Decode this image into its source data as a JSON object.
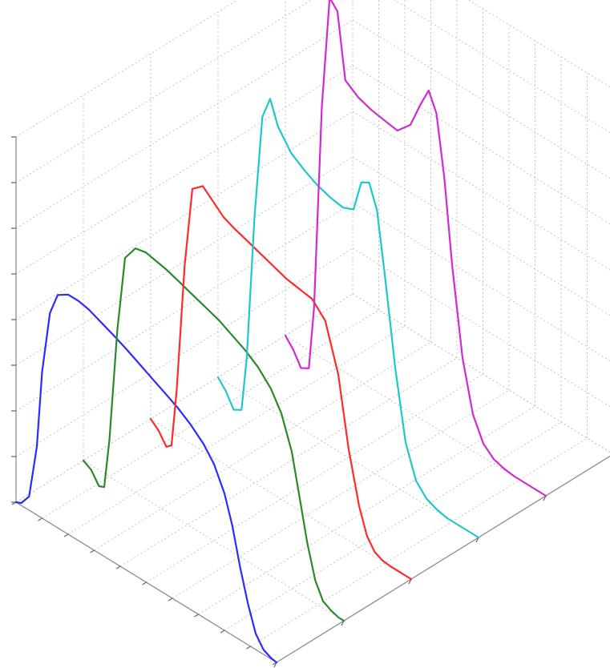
{
  "chart_data": {
    "type": "line",
    "title": "",
    "xlabel": "",
    "ylabel": "",
    "zlabel": "",
    "grid": true,
    "legend": "none",
    "xlim": [
      0,
      10
    ],
    "ylim": [
      0,
      5
    ],
    "zlim": [
      0,
      8
    ],
    "series": [
      {
        "color": "#2b2bff",
        "depth": 0,
        "x": [
          0.0,
          0.2,
          0.5,
          0.8,
          1.0,
          1.3,
          1.6,
          2.0,
          2.4,
          2.8,
          3.2,
          3.7,
          4.2,
          4.7,
          5.2,
          5.7,
          6.2,
          6.7,
          7.2,
          7.6,
          8.0,
          8.3,
          8.6,
          8.9,
          9.2,
          9.5,
          9.8,
          10.0
        ],
        "z": [
          0.0,
          0.05,
          0.3,
          1.5,
          3.2,
          4.6,
          5.1,
          5.25,
          5.25,
          5.2,
          5.1,
          4.98,
          4.85,
          4.7,
          4.55,
          4.4,
          4.25,
          4.05,
          3.8,
          3.5,
          3.0,
          2.4,
          1.6,
          0.9,
          0.35,
          0.1,
          0.02,
          0.0
        ]
      },
      {
        "color": "#2a8a2a",
        "depth": 1,
        "x": [
          0.0,
          0.3,
          0.6,
          0.8,
          1.0,
          1.3,
          1.6,
          2.0,
          2.4,
          2.8,
          3.2,
          3.7,
          4.2,
          4.7,
          5.2,
          5.7,
          6.2,
          6.7,
          7.2,
          7.6,
          8.0,
          8.3,
          8.6,
          8.9,
          9.2,
          9.5,
          9.8,
          10.0
        ],
        "z": [
          0.0,
          -0.1,
          -0.35,
          -0.3,
          0.8,
          3.3,
          5.0,
          5.35,
          5.4,
          5.35,
          5.3,
          5.2,
          5.1,
          5.0,
          4.9,
          4.75,
          4.6,
          4.4,
          4.1,
          3.7,
          3.0,
          2.1,
          1.2,
          0.5,
          0.15,
          0.05,
          0.0,
          0.0
        ]
      },
      {
        "color": "#ff2a2a",
        "depth": 2,
        "x": [
          0.0,
          0.3,
          0.6,
          0.8,
          1.0,
          1.3,
          1.6,
          2.0,
          2.4,
          2.8,
          3.2,
          3.7,
          4.2,
          4.7,
          5.2,
          5.7,
          6.2,
          6.7,
          7.2,
          7.6,
          8.0,
          8.3,
          8.6,
          8.9,
          9.2,
          9.5,
          9.8,
          10.0
        ],
        "z": [
          0.0,
          -0.15,
          -0.4,
          -0.3,
          1.0,
          3.8,
          5.6,
          5.8,
          5.6,
          5.4,
          5.3,
          5.2,
          5.1,
          5.0,
          4.9,
          4.85,
          4.8,
          4.5,
          3.5,
          2.0,
          0.9,
          0.35,
          0.1,
          0.02,
          0.0,
          0.0,
          0.0,
          0.0
        ]
      },
      {
        "color": "#1fc8c8",
        "depth": 3,
        "x": [
          0.0,
          0.3,
          0.6,
          0.9,
          1.1,
          1.4,
          1.7,
          2.0,
          2.3,
          2.8,
          3.3,
          3.8,
          4.3,
          4.8,
          5.2,
          5.5,
          5.8,
          6.1,
          6.4,
          6.8,
          7.2,
          7.6,
          8.0,
          8.4,
          8.8,
          9.2,
          9.6,
          10.0
        ],
        "z": [
          0.0,
          -0.2,
          -0.5,
          -0.4,
          0.8,
          4.0,
          6.3,
          6.8,
          6.3,
          5.9,
          5.7,
          5.55,
          5.45,
          5.4,
          5.5,
          6.2,
          6.3,
          5.8,
          4.5,
          2.6,
          1.1,
          0.4,
          0.15,
          0.05,
          0.0,
          0.0,
          0.0,
          0.0
        ]
      },
      {
        "color": "#d22ad2",
        "depth": 4,
        "x": [
          0.0,
          0.3,
          0.6,
          0.9,
          1.1,
          1.4,
          1.7,
          2.0,
          2.3,
          2.8,
          3.3,
          3.8,
          4.3,
          4.8,
          5.2,
          5.5,
          5.8,
          6.1,
          6.4,
          6.8,
          7.2,
          7.6,
          8.0,
          8.4,
          8.8,
          9.2,
          9.6,
          10.0
        ],
        "z": [
          0.0,
          -0.2,
          -0.5,
          -0.4,
          1.0,
          5.5,
          8.0,
          7.8,
          6.4,
          6.2,
          6.1,
          6.05,
          6.0,
          6.3,
          6.9,
          7.3,
          6.9,
          5.6,
          3.8,
          1.9,
          0.8,
          0.3,
          0.1,
          0.03,
          0.0,
          0.0,
          0.0,
          0.0
        ]
      }
    ]
  }
}
